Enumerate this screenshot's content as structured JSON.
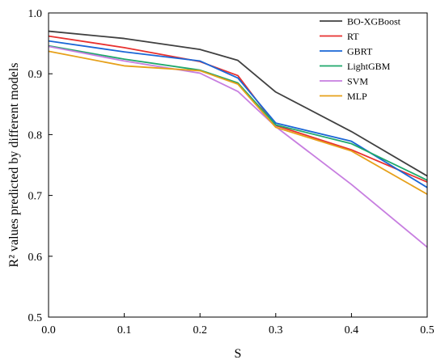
{
  "chart_data": {
    "type": "line",
    "title": "",
    "xlabel": "S",
    "ylabel": "R² values predicted by different models",
    "xlim": [
      0.0,
      0.5
    ],
    "ylim": [
      0.5,
      1.0
    ],
    "x_ticks": [
      "0.0",
      "0.1",
      "0.2",
      "0.3",
      "0.4",
      "0.5"
    ],
    "y_ticks": [
      "0.5",
      "0.6",
      "0.7",
      "0.8",
      "0.9",
      "1.0"
    ],
    "grid": false,
    "legend_position": "top-right",
    "x": [
      0.0,
      0.1,
      0.2,
      0.25,
      0.3,
      0.4,
      0.5
    ],
    "series": [
      {
        "name": "BO-XGBoost",
        "color": "#404040",
        "values": [
          0.97,
          0.958,
          0.94,
          0.922,
          0.87,
          0.805,
          0.732
        ]
      },
      {
        "name": "RT",
        "color": "#e8312f",
        "values": [
          0.962,
          0.943,
          0.92,
          0.897,
          0.815,
          0.775,
          0.722
        ]
      },
      {
        "name": "GBRT",
        "color": "#1a66d6",
        "values": [
          0.954,
          0.936,
          0.921,
          0.893,
          0.819,
          0.789,
          0.713
        ]
      },
      {
        "name": "LightGBM",
        "color": "#1fa86b",
        "values": [
          0.946,
          0.924,
          0.906,
          0.885,
          0.816,
          0.785,
          0.725
        ]
      },
      {
        "name": "SVM",
        "color": "#c77ee0",
        "values": [
          0.945,
          0.921,
          0.901,
          0.871,
          0.813,
          0.718,
          0.615
        ]
      },
      {
        "name": "MLP",
        "color": "#e6a01a",
        "values": [
          0.937,
          0.913,
          0.905,
          0.883,
          0.812,
          0.773,
          0.702
        ]
      }
    ]
  }
}
